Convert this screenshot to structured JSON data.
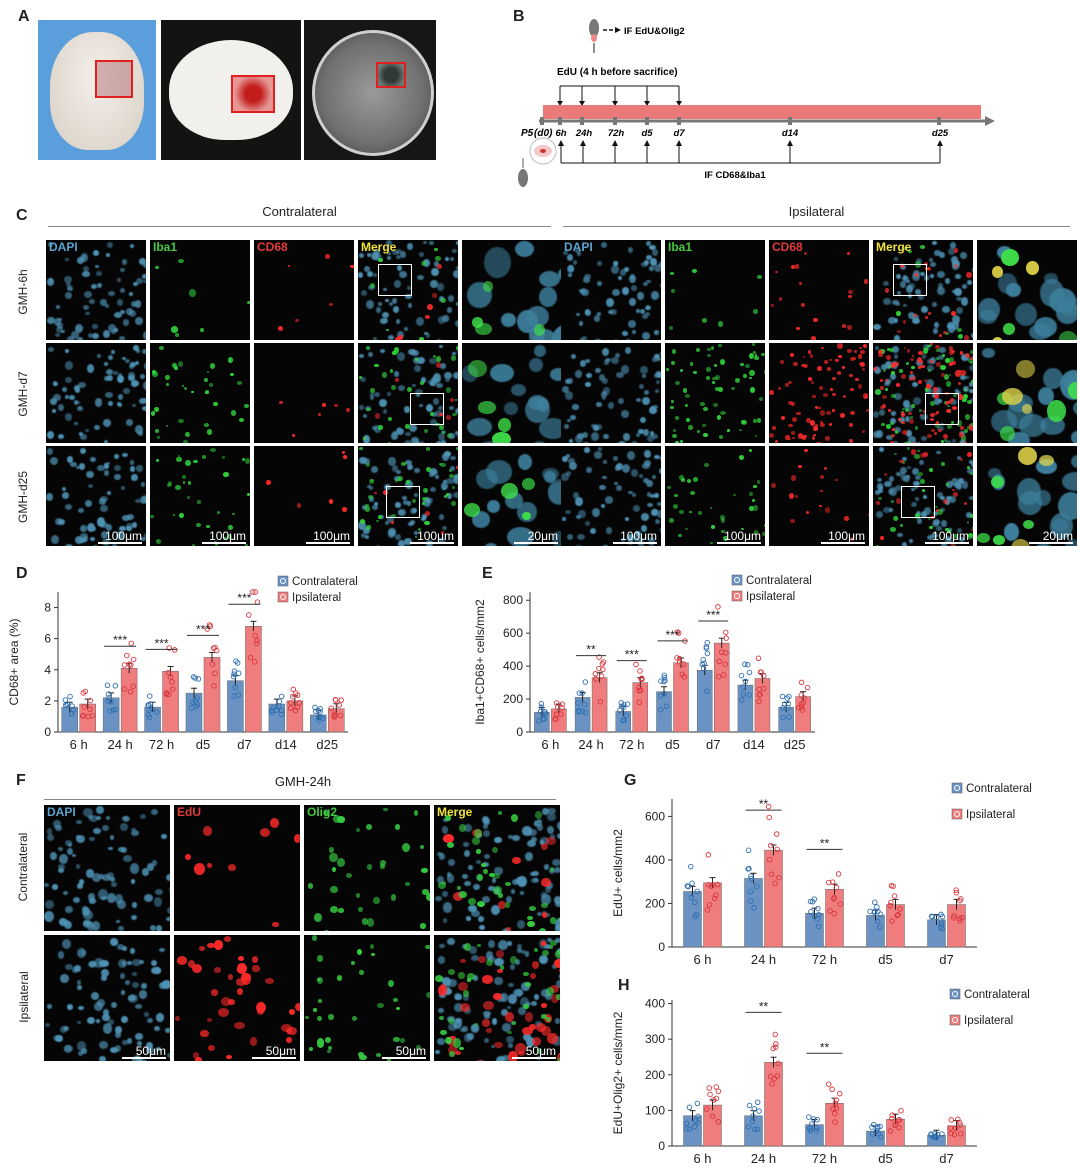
{
  "panels": {
    "A": "A",
    "B": "B",
    "C": "C",
    "D": "D",
    "E": "E",
    "F": "F",
    "G": "G",
    "H": "H"
  },
  "panelB": {
    "if1": "IF EdU&Olig2",
    "edu": "EdU (4 h before sacrifice)",
    "p5": "P5",
    "d0": "(d0)",
    "times": [
      "6h",
      "24h",
      "72h",
      "d5",
      "d7",
      "d14",
      "d25"
    ],
    "if2": "IF CD68&Iba1"
  },
  "panelC": {
    "groups": [
      "Contralateral",
      "Ipsilateral"
    ],
    "channels": [
      "DAPI",
      "Iba1",
      "CD68",
      "Merge"
    ],
    "rows": [
      "GMH-6h",
      "GMH-d7",
      "GMH-d25"
    ],
    "scale_main": "100μm",
    "scale_zoom": "20μm"
  },
  "panelF": {
    "title": "GMH-24h",
    "channels": [
      "DAPI",
      "EdU",
      "Olig2",
      "Merge"
    ],
    "rows": [
      "Contralateral",
      "Ipsilateral"
    ],
    "scale": "50μm"
  },
  "colors": {
    "contra": "#6a93c4",
    "ipsi": "#ef7d7d",
    "contra_dot": "#2e6fb0",
    "ipsi_dot": "#d9363e",
    "bar_pink": "#ea7a7a"
  },
  "chart_data": [
    {
      "id": "D",
      "type": "bar",
      "categories": [
        "6 h",
        "24 h",
        "72 h",
        "d5",
        "d7",
        "d14",
        "d25"
      ],
      "series": [
        {
          "name": "Contralateral",
          "values": [
            1.6,
            2.2,
            1.6,
            2.5,
            3.3,
            1.8,
            1.1
          ]
        },
        {
          "name": "Ipsilateral",
          "values": [
            1.8,
            4.1,
            3.9,
            4.8,
            6.8,
            2.0,
            1.5
          ]
        }
      ],
      "ylabel": "CD68+ area (%)",
      "ylim": [
        0,
        9
      ],
      "yticks": [
        0,
        2,
        4,
        6,
        8
      ],
      "sig": [
        {
          "cat": 1,
          "label": "***"
        },
        {
          "cat": 2,
          "label": "***"
        },
        {
          "cat": 3,
          "label": "***"
        },
        {
          "cat": 4,
          "label": "***"
        }
      ]
    },
    {
      "id": "E",
      "type": "bar",
      "categories": [
        "6 h",
        "24 h",
        "72 h",
        "d5",
        "d7",
        "d14",
        "d25"
      ],
      "series": [
        {
          "name": "Contralateral",
          "values": [
            120,
            210,
            125,
            245,
            375,
            285,
            150
          ]
        },
        {
          "name": "Ipsilateral",
          "values": [
            140,
            330,
            300,
            420,
            540,
            325,
            215
          ]
        }
      ],
      "ylabel": "Iba1+CD68+ cells/mm2",
      "ylim": [
        0,
        850
      ],
      "yticks": [
        0,
        200,
        400,
        600,
        800
      ],
      "sig": [
        {
          "cat": 1,
          "label": "**"
        },
        {
          "cat": 2,
          "label": "***"
        },
        {
          "cat": 3,
          "label": "***"
        },
        {
          "cat": 4,
          "label": "***"
        }
      ]
    },
    {
      "id": "G",
      "type": "bar",
      "categories": [
        "6 h",
        "24 h",
        "72 h",
        "d5",
        "d7"
      ],
      "series": [
        {
          "name": "Contralateral",
          "values": [
            255,
            315,
            155,
            145,
            125
          ]
        },
        {
          "name": "Ipsilateral",
          "values": [
            295,
            445,
            265,
            195,
            195
          ]
        }
      ],
      "ylabel": "EdU+ cells/mm2",
      "ylim": [
        0,
        680
      ],
      "yticks": [
        0,
        200,
        400,
        600
      ],
      "sig": [
        {
          "cat": 1,
          "label": "**"
        },
        {
          "cat": 2,
          "label": "**"
        }
      ]
    },
    {
      "id": "H",
      "type": "bar",
      "categories": [
        "6 h",
        "24 h",
        "72 h",
        "d5",
        "d7"
      ],
      "series": [
        {
          "name": "Contralateral",
          "values": [
            85,
            85,
            60,
            42,
            30
          ]
        },
        {
          "name": "Ipsilateral",
          "values": [
            115,
            235,
            120,
            75,
            57
          ]
        }
      ],
      "ylabel": "EdU+Olig2+ cells/mm2",
      "ylim": [
        0,
        410
      ],
      "yticks": [
        0,
        100,
        200,
        300,
        400
      ],
      "sig": [
        {
          "cat": 1,
          "label": "**"
        },
        {
          "cat": 2,
          "label": "**"
        }
      ]
    }
  ]
}
